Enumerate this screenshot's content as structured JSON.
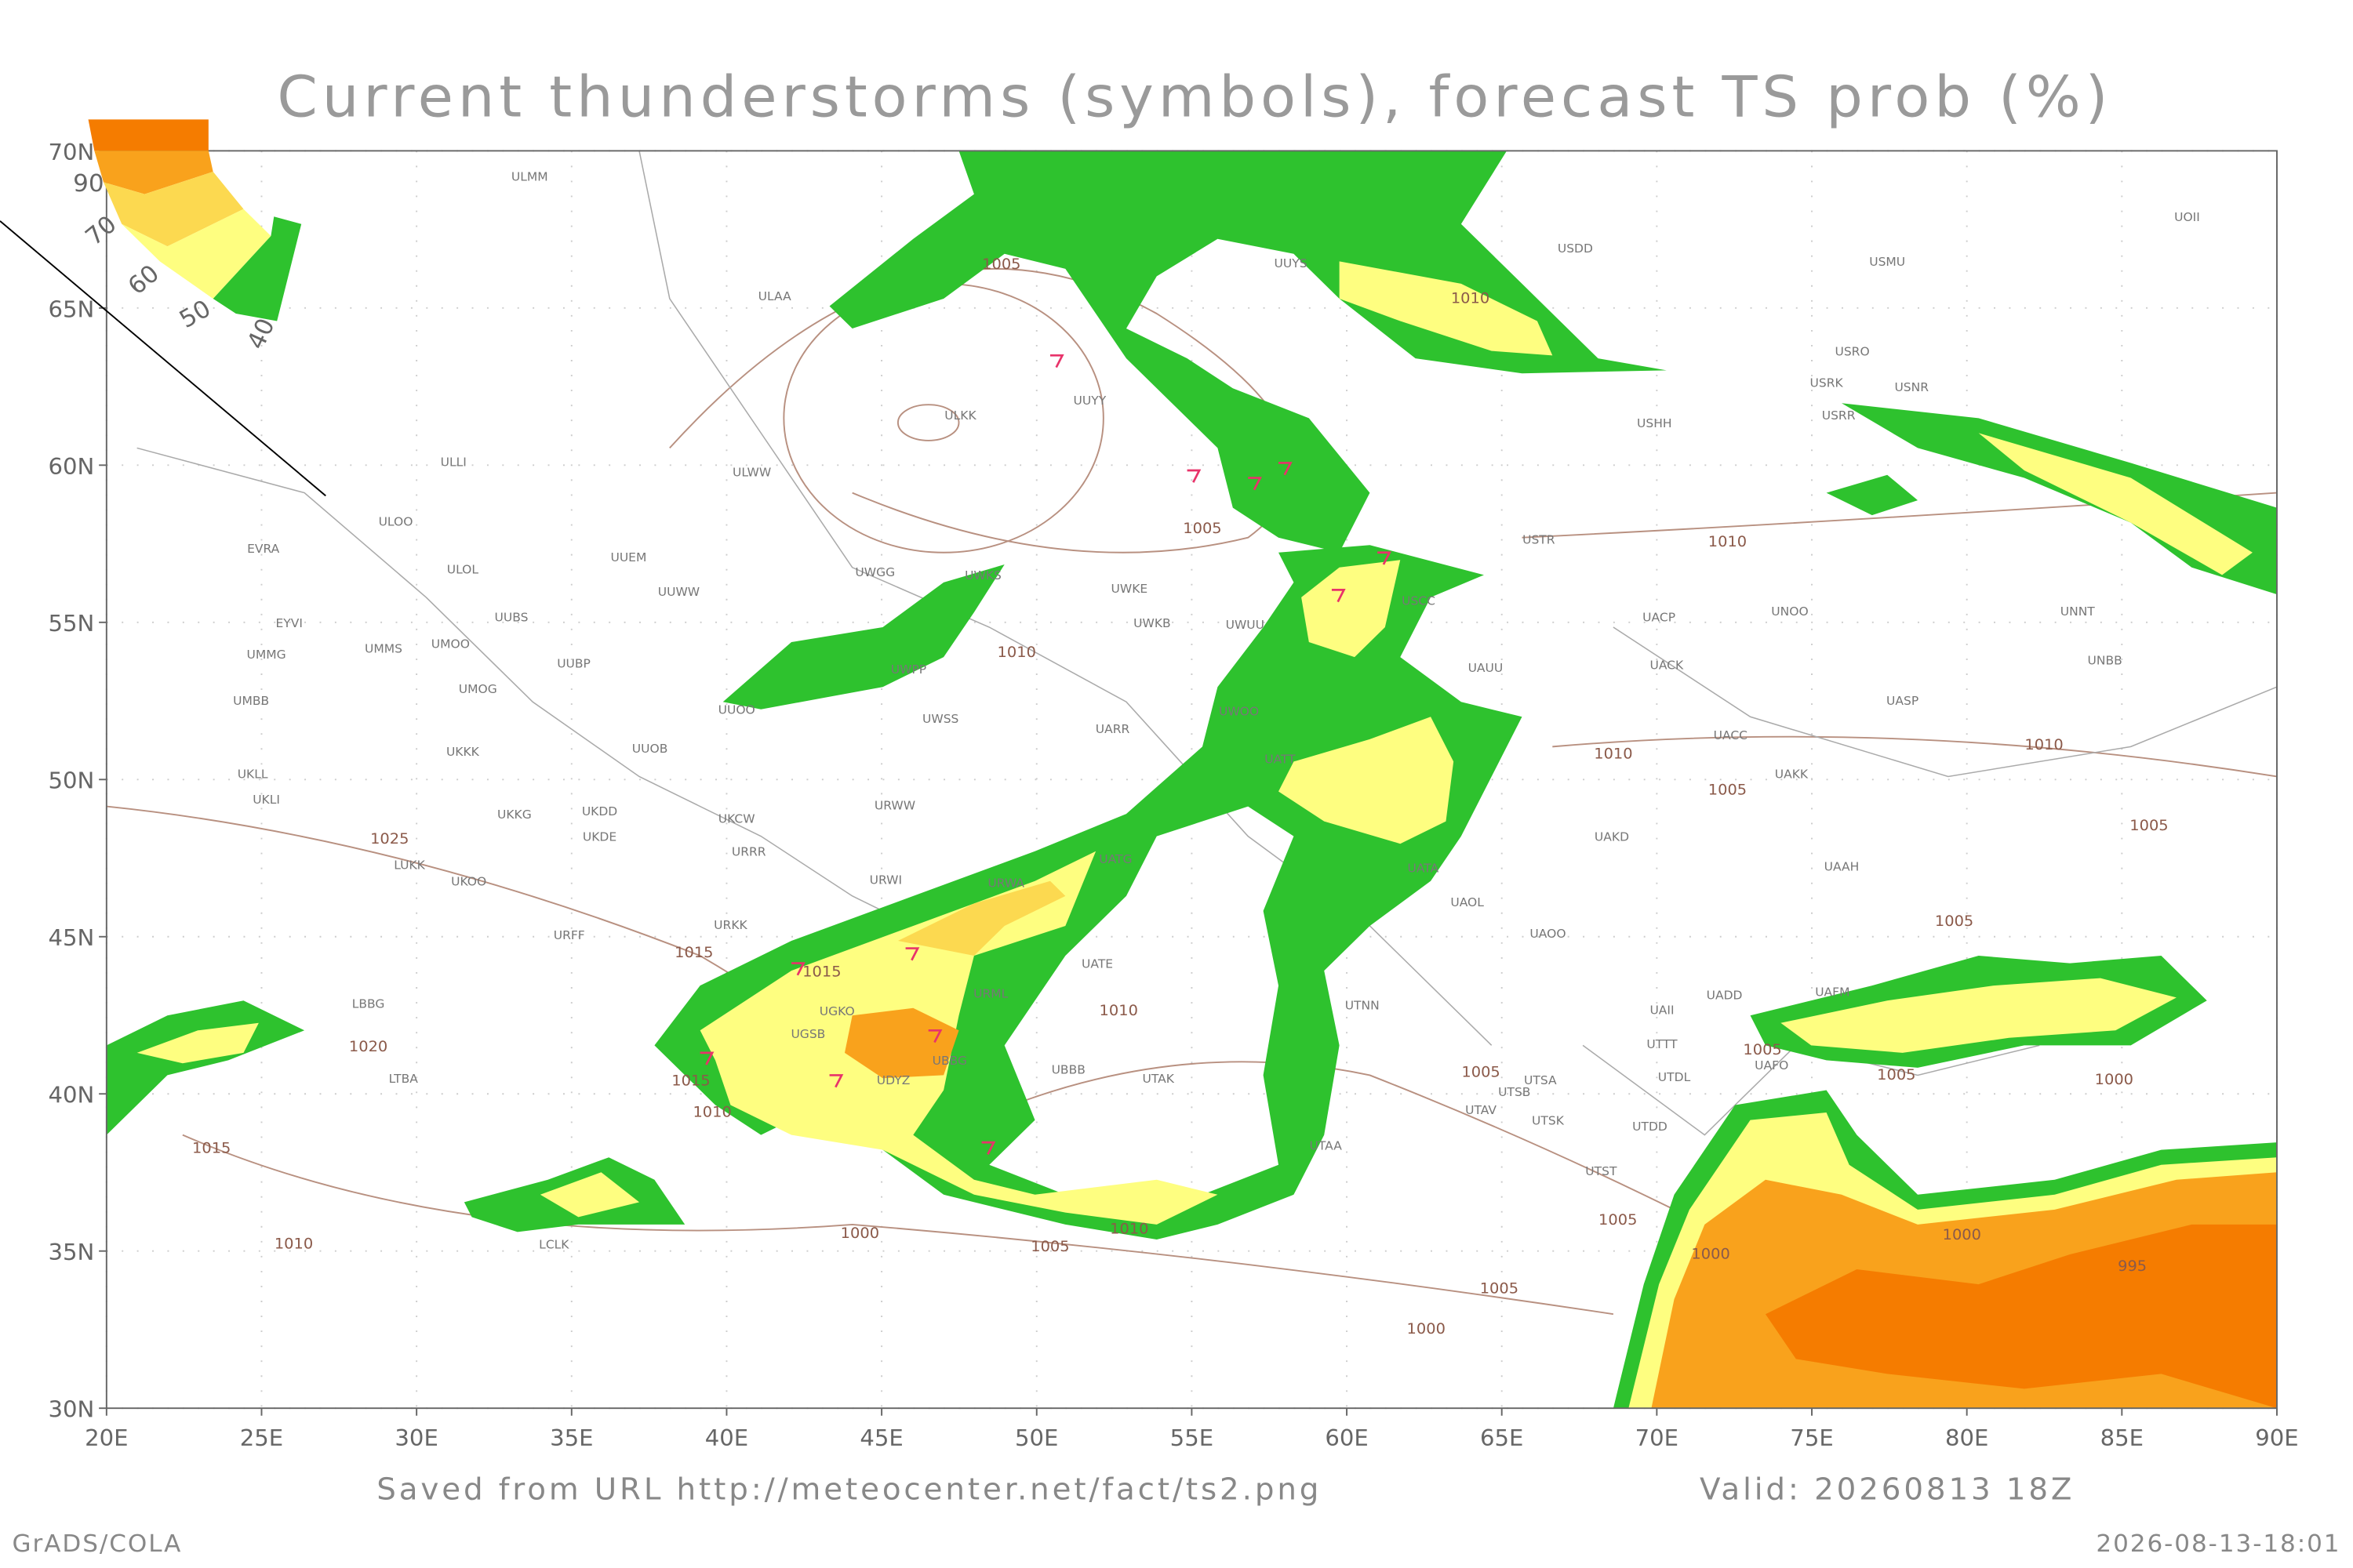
{
  "title": "Current thunderstorms (symbols), forecast TS prob (%)",
  "lonlim": [
    20,
    90
  ],
  "latlim": [
    30,
    70
  ],
  "lon_ticks": [
    {
      "value": 20,
      "label": "20E"
    },
    {
      "value": 25,
      "label": "25E"
    },
    {
      "value": 30,
      "label": "30E"
    },
    {
      "value": 35,
      "label": "35E"
    },
    {
      "value": 40,
      "label": "40E"
    },
    {
      "value": 45,
      "label": "45E"
    },
    {
      "value": 50,
      "label": "50E"
    },
    {
      "value": 55,
      "label": "55E"
    },
    {
      "value": 60,
      "label": "60E"
    },
    {
      "value": 65,
      "label": "65E"
    },
    {
      "value": 70,
      "label": "70E"
    },
    {
      "value": 75,
      "label": "75E"
    },
    {
      "value": 80,
      "label": "80E"
    },
    {
      "value": 85,
      "label": "85E"
    },
    {
      "value": 90,
      "label": "90E"
    }
  ],
  "lat_ticks": [
    {
      "value": 30,
      "label": "30N"
    },
    {
      "value": 35,
      "label": "35N"
    },
    {
      "value": 40,
      "label": "40N"
    },
    {
      "value": 45,
      "label": "45N"
    },
    {
      "value": 50,
      "label": "50N"
    },
    {
      "value": 55,
      "label": "55N"
    },
    {
      "value": 60,
      "label": "60N"
    },
    {
      "value": 65,
      "label": "65N"
    },
    {
      "value": 70,
      "label": "70N"
    }
  ],
  "legend": {
    "labels": [
      90,
      70,
      60,
      50,
      40
    ]
  },
  "stations": [
    "ULMM",
    "ULAA",
    "ULLI",
    "ULOO",
    "EVRA",
    "UUEM",
    "ULOL",
    "UUWW",
    "UUBS",
    "EYVI",
    "UMMS",
    "UMOO",
    "UUBP",
    "UMMG",
    "UMOG",
    "UMBB",
    "UUOB",
    "UKKK",
    "UKLL",
    "UKLI",
    "UKKG",
    "UKDD",
    "UKDE",
    "UKCW",
    "URRR",
    "LUKK",
    "UKOO",
    "URFF",
    "URKK",
    "LBBG",
    "LTBA",
    "LCLK",
    "UWGG",
    "UWKS",
    "UWKE",
    "UWKB",
    "UWUU",
    "UWPP",
    "UUOO",
    "UWSS",
    "UARR",
    "URWW",
    "URWI",
    "UATG",
    "URWA",
    "UATE",
    "URML",
    "UBBB",
    "UTAK",
    "UTAA",
    "UTNN",
    "UATA",
    "UAOL",
    "UAOO",
    "UAKD",
    "UACC",
    "UAKK",
    "UACK",
    "UACP",
    "UNOO",
    "UNNT",
    "UNBB",
    "UASP",
    "UAAH",
    "USRO",
    "USRK",
    "USNR",
    "USRR",
    "USMU",
    "USDD",
    "UOII",
    "UUYS",
    "UUYY",
    "ULKK",
    "ULWW",
    "USHH",
    "USTR",
    "USCC",
    "UAUU",
    "UWOO",
    "UATT",
    "UGSB",
    "UDYZ",
    "UBBG",
    "UGKO",
    "UTSA",
    "UTSB",
    "UTAV",
    "UTSK",
    "UTDD",
    "UTST",
    "UTDL",
    "UTTT",
    "UAII",
    "UADD",
    "UAFO",
    "UAFM"
  ],
  "isobar_labels": [
    1005,
    1010,
    1005,
    1010,
    1010,
    1010,
    1010,
    1005,
    1005,
    1025,
    1015,
    1015,
    1020,
    1015,
    1010,
    1010,
    1015,
    1010,
    1000,
    1005,
    1010,
    1005,
    1005,
    1000,
    1000,
    1000,
    995,
    1005,
    1005,
    1000,
    1005,
    1005
  ],
  "footer": {
    "source": "Saved from URL http://meteocenter.net/fact/ts2.png",
    "valid": "Valid: 20260813 18Z",
    "credit": "GrADS/COLA",
    "timestamp": "2026-08-13-18:01"
  }
}
